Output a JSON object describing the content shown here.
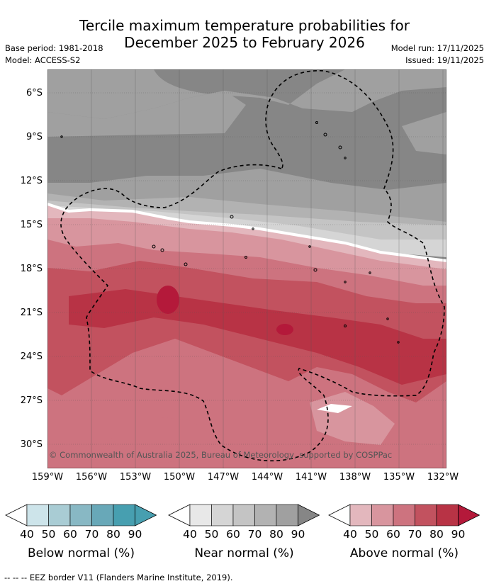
{
  "title_line1": "Tercile maximum temperature probabilities for",
  "title_line2": "December 2025 to February 2026",
  "base_period": "Base period: 1981-2018",
  "model": "Model: ACCESS-S2",
  "model_run": "Model run: 17/11/2025",
  "issued": "Issued: 19/11/2025",
  "copyright": "© Commonwealth of Australia 2025, Bureau of Meteorology, supported by COSPPac",
  "lat_labels": [
    "6°S",
    "9°S",
    "12°S",
    "15°S",
    "18°S",
    "21°S",
    "24°S",
    "27°S",
    "30°S"
  ],
  "lon_labels": [
    "159°W",
    "156°W",
    "153°W",
    "150°W",
    "147°W",
    "144°W",
    "141°W",
    "138°W",
    "135°W",
    "132°W"
  ],
  "colorbars": [
    {
      "name": "Below normal (%)",
      "ticks": [
        "40",
        "50",
        "60",
        "70",
        "80",
        "90"
      ],
      "colors": [
        "#ffffff",
        "#cde4ea",
        "#a9ccd4",
        "#88b8c4",
        "#68a8b8",
        "#479fb0"
      ]
    },
    {
      "name": "Near normal (%)",
      "ticks": [
        "40",
        "50",
        "60",
        "70",
        "80",
        "90"
      ],
      "colors": [
        "#ffffff",
        "#e8e8e8",
        "#d5d5d5",
        "#c4c4c4",
        "#b2b2b2",
        "#a0a0a0",
        "#868686"
      ]
    },
    {
      "name": "Above normal (%)",
      "ticks": [
        "40",
        "50",
        "60",
        "70",
        "80",
        "90"
      ],
      "colors": [
        "#ffffff",
        "#e3b7bd",
        "#d8959e",
        "#cd737f",
        "#c2525f",
        "#b83345",
        "#b4193a"
      ]
    }
  ],
  "footer": "-- -- -- EEZ border V11 (Flanders Marine Institute, 2019)."
}
